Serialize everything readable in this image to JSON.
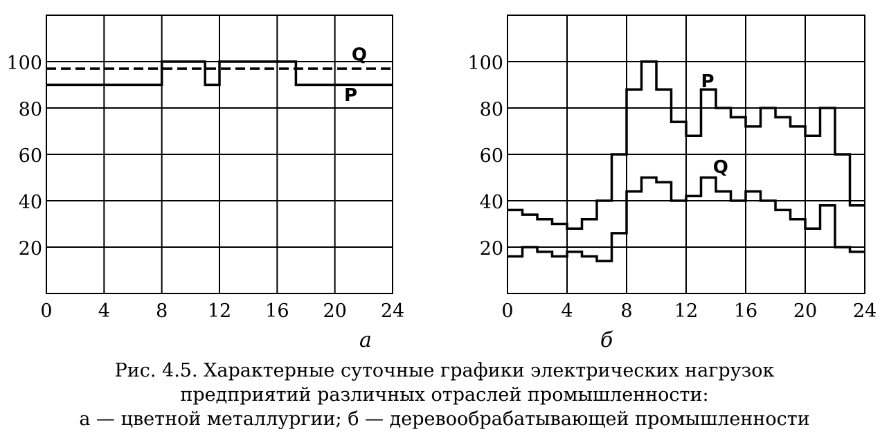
{
  "chart_data": [
    {
      "type": "line",
      "panel_label": "а",
      "xlim": [
        0,
        24
      ],
      "ylim": [
        0,
        120
      ],
      "x_ticks": [
        "0",
        "4",
        "8",
        "12",
        "16",
        "20",
        "24"
      ],
      "y_ticks": [
        "20",
        "40",
        "60",
        "80",
        "100"
      ],
      "grid": true,
      "series": [
        {
          "name": "Q",
          "style": "dashed",
          "x": [
            0,
            24
          ],
          "y": [
            97,
            97
          ]
        },
        {
          "name": "P",
          "style": "solid",
          "x": [
            0,
            8,
            8,
            11,
            11,
            12,
            12,
            17.3,
            17.3,
            24
          ],
          "y": [
            90,
            90,
            100,
            100,
            90,
            90,
            100,
            100,
            90,
            90
          ]
        }
      ]
    },
    {
      "type": "line",
      "panel_label": "б",
      "xlim": [
        0,
        24
      ],
      "ylim": [
        0,
        120
      ],
      "x_ticks": [
        "0",
        "4",
        "8",
        "12",
        "16",
        "20",
        "24"
      ],
      "y_ticks": [
        "20",
        "40",
        "60",
        "80",
        "100"
      ],
      "grid": true,
      "series": [
        {
          "name": "P",
          "style": "solid",
          "x": [
            0,
            1,
            1,
            2,
            2,
            3,
            3,
            4,
            4,
            5,
            5,
            6,
            6,
            7,
            7,
            8,
            8,
            9,
            9,
            10,
            10,
            11,
            11,
            12,
            12,
            13,
            13,
            14,
            14,
            15,
            15,
            16,
            16,
            17,
            17,
            18,
            18,
            19,
            19,
            20,
            20,
            21,
            21,
            22,
            22,
            23,
            23,
            24
          ],
          "y": [
            36,
            36,
            34,
            34,
            32,
            32,
            30,
            30,
            28,
            28,
            32,
            32,
            40,
            40,
            60,
            60,
            88,
            88,
            100,
            100,
            88,
            88,
            74,
            74,
            68,
            68,
            88,
            88,
            80,
            80,
            76,
            76,
            72,
            72,
            80,
            80,
            76,
            76,
            72,
            72,
            68,
            68,
            80,
            80,
            60,
            60,
            38,
            38
          ]
        },
        {
          "name": "Q",
          "style": "solid",
          "x": [
            0,
            1,
            1,
            2,
            2,
            3,
            3,
            4,
            4,
            5,
            5,
            6,
            6,
            7,
            7,
            8,
            8,
            9,
            9,
            10,
            10,
            11,
            11,
            12,
            12,
            13,
            13,
            14,
            14,
            15,
            15,
            16,
            16,
            17,
            17,
            18,
            18,
            19,
            19,
            20,
            20,
            21,
            21,
            22,
            22,
            23,
            23,
            24
          ],
          "y": [
            16,
            16,
            20,
            20,
            18,
            18,
            16,
            16,
            18,
            18,
            16,
            16,
            14,
            14,
            26,
            26,
            44,
            44,
            50,
            50,
            48,
            48,
            40,
            40,
            42,
            42,
            50,
            50,
            44,
            44,
            40,
            40,
            44,
            44,
            40,
            40,
            36,
            36,
            32,
            32,
            28,
            28,
            38,
            38,
            20,
            20,
            18,
            18
          ]
        }
      ]
    }
  ],
  "caption": {
    "line1": "Рис. 4.5. Характерные суточные графики электрических нагрузок",
    "line2": "предприятий различных отраслей промышленности:",
    "line3": "а — цветной металлургии; б — деревообрабатывающей промышленности"
  }
}
